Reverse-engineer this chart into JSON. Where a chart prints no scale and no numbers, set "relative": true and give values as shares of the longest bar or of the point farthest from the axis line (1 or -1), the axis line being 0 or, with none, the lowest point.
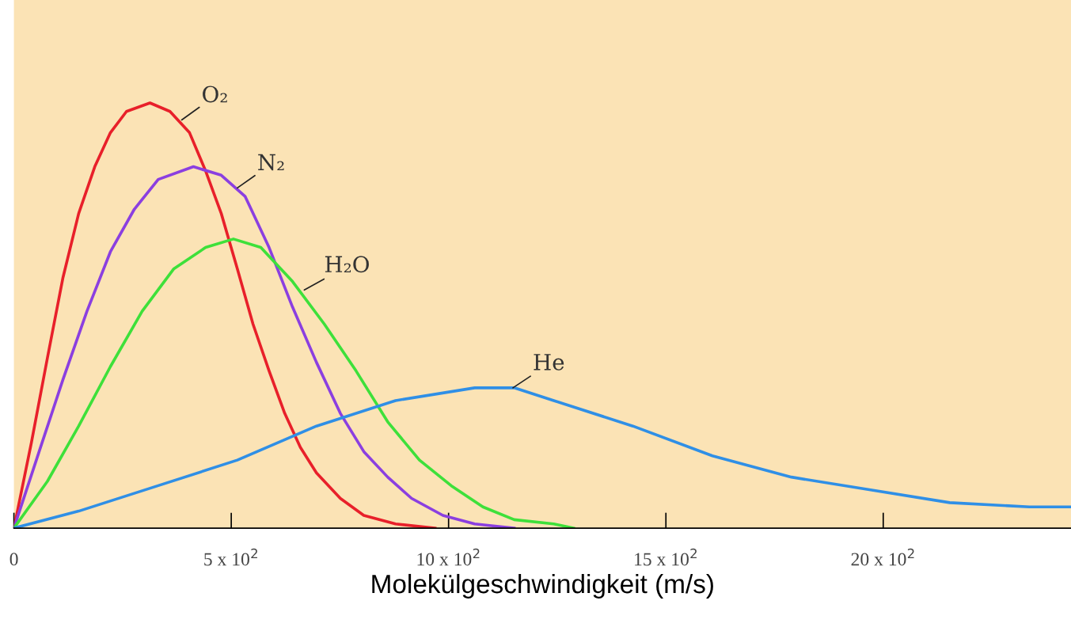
{
  "chart_data": {
    "type": "line",
    "relative": true,
    "xlabel": "Molekülgeschwindigkeit (m/s)",
    "xlim": [
      0,
      2432
    ],
    "xticks": [
      0,
      {
        "value": 500,
        "label": "5 x 10$^{2}$"
      },
      {
        "value": 1000,
        "label": "10 x 10$^{2}$"
      },
      {
        "value": 1500,
        "label": "15 x 10$^{2}$"
      },
      {
        "value": 2000,
        "label": "20 x 10$^{2}$"
      }
    ],
    "tick_labels": "x",
    "grid": false,
    "legend": false,
    "marker": "none",
    "line_style": "solid",
    "series": [
      {
        "color": "#e8202a",
        "x": [
          0,
          40,
          77,
          113,
          149,
          186,
          222,
          259,
          313,
          359,
          404,
          441,
          477,
          514,
          550,
          587,
          623,
          659,
          696,
          751,
          805,
          878,
          969
        ],
        "values": [
          0,
          0.2,
          0.4,
          0.59,
          0.74,
          0.85,
          0.93,
          0.98,
          1,
          0.98,
          0.93,
          0.84,
          0.74,
          0.61,
          0.48,
          0.37,
          0.27,
          0.19,
          0.13,
          0.07,
          0.03,
          0.01,
          0
        ]
      },
      {
        "color": "#8b3fe0",
        "x": [
          0,
          58,
          113,
          168,
          222,
          277,
          332,
          413,
          477,
          532,
          587,
          641,
          696,
          751,
          805,
          860,
          915,
          987,
          1060,
          1151
        ],
        "values": [
          0,
          0.18,
          0.35,
          0.51,
          0.65,
          0.75,
          0.82,
          0.85,
          0.83,
          0.78,
          0.66,
          0.52,
          0.39,
          0.27,
          0.18,
          0.12,
          0.07,
          0.03,
          0.01,
          0
        ]
      },
      {
        "color": "#3ee03a",
        "x": [
          0,
          77,
          149,
          222,
          295,
          368,
          441,
          505,
          568,
          641,
          714,
          787,
          860,
          933,
          1006,
          1079,
          1151,
          1242,
          1288
        ],
        "values": [
          0,
          0.11,
          0.24,
          0.38,
          0.51,
          0.61,
          0.66,
          0.68,
          0.66,
          0.58,
          0.48,
          0.37,
          0.25,
          0.16,
          0.1,
          0.05,
          0.02,
          0.01,
          0
        ]
      },
      {
        "color": "#2f8fe6",
        "x": [
          0,
          149,
          332,
          514,
          696,
          878,
          1060,
          1151,
          1242,
          1424,
          1607,
          1789,
          1971,
          2153,
          2336,
          2432
        ],
        "values": [
          0,
          0.04,
          0.1,
          0.16,
          0.24,
          0.3,
          0.33,
          0.33,
          0.3,
          0.24,
          0.17,
          0.12,
          0.09,
          0.06,
          0.05,
          0.05
        ]
      }
    ],
    "annotations": [
      {
        "text": "O₂",
        "x": 386,
        "y": 0.96
      },
      {
        "text": "N₂",
        "x": 514,
        "y": 0.8
      },
      {
        "text": "H₂O",
        "x": 668,
        "y": 0.56
      },
      {
        "text": "He",
        "x": 1148,
        "y": 0.33
      }
    ]
  }
}
